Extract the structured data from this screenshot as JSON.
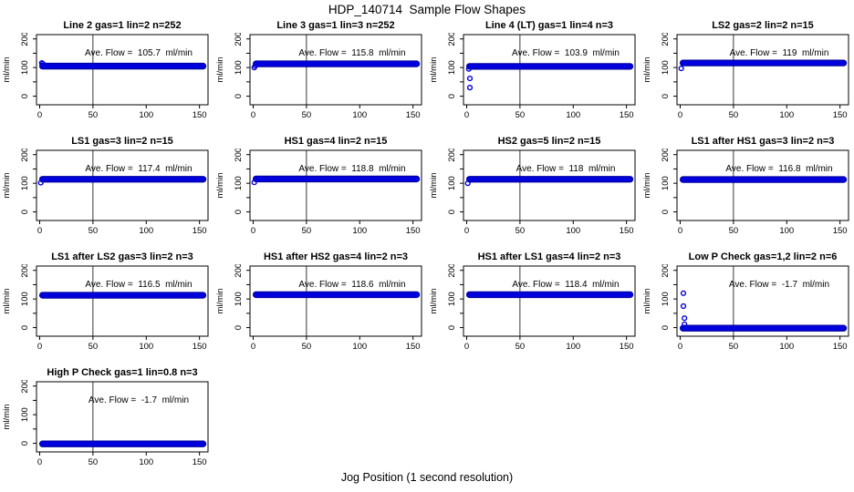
{
  "page": {
    "title": "HDP_140714  Sample Flow Shapes",
    "xlabel": "Jog Position (1 second resolution)"
  },
  "axes": {
    "ylabel": "ml/min",
    "xticks": [
      0,
      50,
      100,
      150
    ],
    "yticks_labeled": [
      0,
      100,
      200
    ],
    "yticks_minor": [
      50,
      150
    ],
    "xlim": [
      -3,
      158
    ],
    "ylim": [
      -30,
      215
    ],
    "vline_x": 50,
    "point_color": "#0000DD",
    "point_edge": "#000099"
  },
  "chart_data": [
    {
      "type": "scatter",
      "title": "Line 2 gas=1 lin=2 n=252",
      "annotation": "Ave. Flow =  105.7  ml/min",
      "ave_flow_ml_min": 105.7,
      "band": {
        "x_start": 0,
        "x_end": 156,
        "y": 105,
        "half": 10
      },
      "outliers": [
        [
          2,
          116
        ],
        [
          3,
          113
        ]
      ]
    },
    {
      "type": "scatter",
      "title": "Line 3 gas=1 lin=3 n=252",
      "annotation": "Ave. Flow =  115.8  ml/min",
      "ave_flow_ml_min": 115.8,
      "band": {
        "x_start": 0,
        "x_end": 156,
        "y": 113,
        "half": 10
      },
      "outliers": [
        [
          1,
          100
        ],
        [
          2,
          106
        ]
      ]
    },
    {
      "type": "scatter",
      "title": "Line 4 (LT) gas=1 lin=4 n=3",
      "annotation": "Ave. Flow =  103.9  ml/min",
      "ave_flow_ml_min": 103.9,
      "band": {
        "x_start": 0,
        "x_end": 156,
        "y": 104,
        "half": 10
      },
      "outliers": [
        [
          2,
          95
        ],
        [
          3,
          62
        ],
        [
          3,
          30
        ]
      ]
    },
    {
      "type": "scatter",
      "title": "LS2 gas=2 lin=2 n=15",
      "annotation": "Ave. Flow =  119  ml/min",
      "ave_flow_ml_min": 119,
      "band": {
        "x_start": 0,
        "x_end": 156,
        "y": 116,
        "half": 10
      },
      "outliers": [
        [
          1,
          97
        ]
      ]
    },
    {
      "type": "scatter",
      "title": "LS1 gas=3 lin=2 n=15",
      "annotation": "Ave. Flow =  117.4  ml/min",
      "ave_flow_ml_min": 117.4,
      "band": {
        "x_start": 0,
        "x_end": 156,
        "y": 114,
        "half": 10
      },
      "outliers": [
        [
          1,
          102
        ]
      ]
    },
    {
      "type": "scatter",
      "title": "HS1 gas=4 lin=2 n=15",
      "annotation": "Ave. Flow =  118.8  ml/min",
      "ave_flow_ml_min": 118.8,
      "band": {
        "x_start": 0,
        "x_end": 156,
        "y": 115,
        "half": 10
      },
      "outliers": [
        [
          1,
          103
        ]
      ]
    },
    {
      "type": "scatter",
      "title": "HS2 gas=5 lin=2 n=15",
      "annotation": "Ave. Flow =  118  ml/min",
      "ave_flow_ml_min": 118,
      "band": {
        "x_start": 0,
        "x_end": 156,
        "y": 114,
        "half": 10
      },
      "outliers": [
        [
          1,
          100
        ]
      ]
    },
    {
      "type": "scatter",
      "title": "LS1 after HS1 gas=3 lin=2 n=3",
      "annotation": "Ave. Flow =  116.8  ml/min",
      "ave_flow_ml_min": 116.8,
      "band": {
        "x_start": 0,
        "x_end": 156,
        "y": 113,
        "half": 10
      },
      "outliers": []
    },
    {
      "type": "scatter",
      "title": "LS1 after LS2 gas=3 lin=2 n=3",
      "annotation": "Ave. Flow =  116.5  ml/min",
      "ave_flow_ml_min": 116.5,
      "band": {
        "x_start": 0,
        "x_end": 156,
        "y": 113,
        "half": 10
      },
      "outliers": []
    },
    {
      "type": "scatter",
      "title": "HS1 after HS2 gas=4 lin=2 n=3",
      "annotation": "Ave. Flow =  118.6  ml/min",
      "ave_flow_ml_min": 118.6,
      "band": {
        "x_start": 0,
        "x_end": 156,
        "y": 115,
        "half": 10
      },
      "outliers": []
    },
    {
      "type": "scatter",
      "title": "HS1 after LS1 gas=4 lin=2 n=3",
      "annotation": "Ave. Flow =  118.4  ml/min",
      "ave_flow_ml_min": 118.4,
      "band": {
        "x_start": 0,
        "x_end": 156,
        "y": 115,
        "half": 10
      },
      "outliers": []
    },
    {
      "type": "scatter",
      "title": "Low P Check gas=1,2 lin=2 n=6",
      "annotation": "Ave. Flow =  -1.7  ml/min",
      "ave_flow_ml_min": -1.7,
      "band": {
        "x_start": 0,
        "x_end": 156,
        "y": -2,
        "half": 10
      },
      "outliers": [
        [
          3,
          120
        ],
        [
          3,
          75
        ],
        [
          4,
          33
        ],
        [
          4,
          12
        ]
      ]
    },
    {
      "type": "scatter",
      "title": "High P Check gas=1 lin=0.8 n=3",
      "annotation": "Ave. Flow =  -1.7  ml/min",
      "ave_flow_ml_min": -1.7,
      "band": {
        "x_start": 0,
        "x_end": 156,
        "y": -2,
        "half": 10
      },
      "outliers": []
    }
  ]
}
